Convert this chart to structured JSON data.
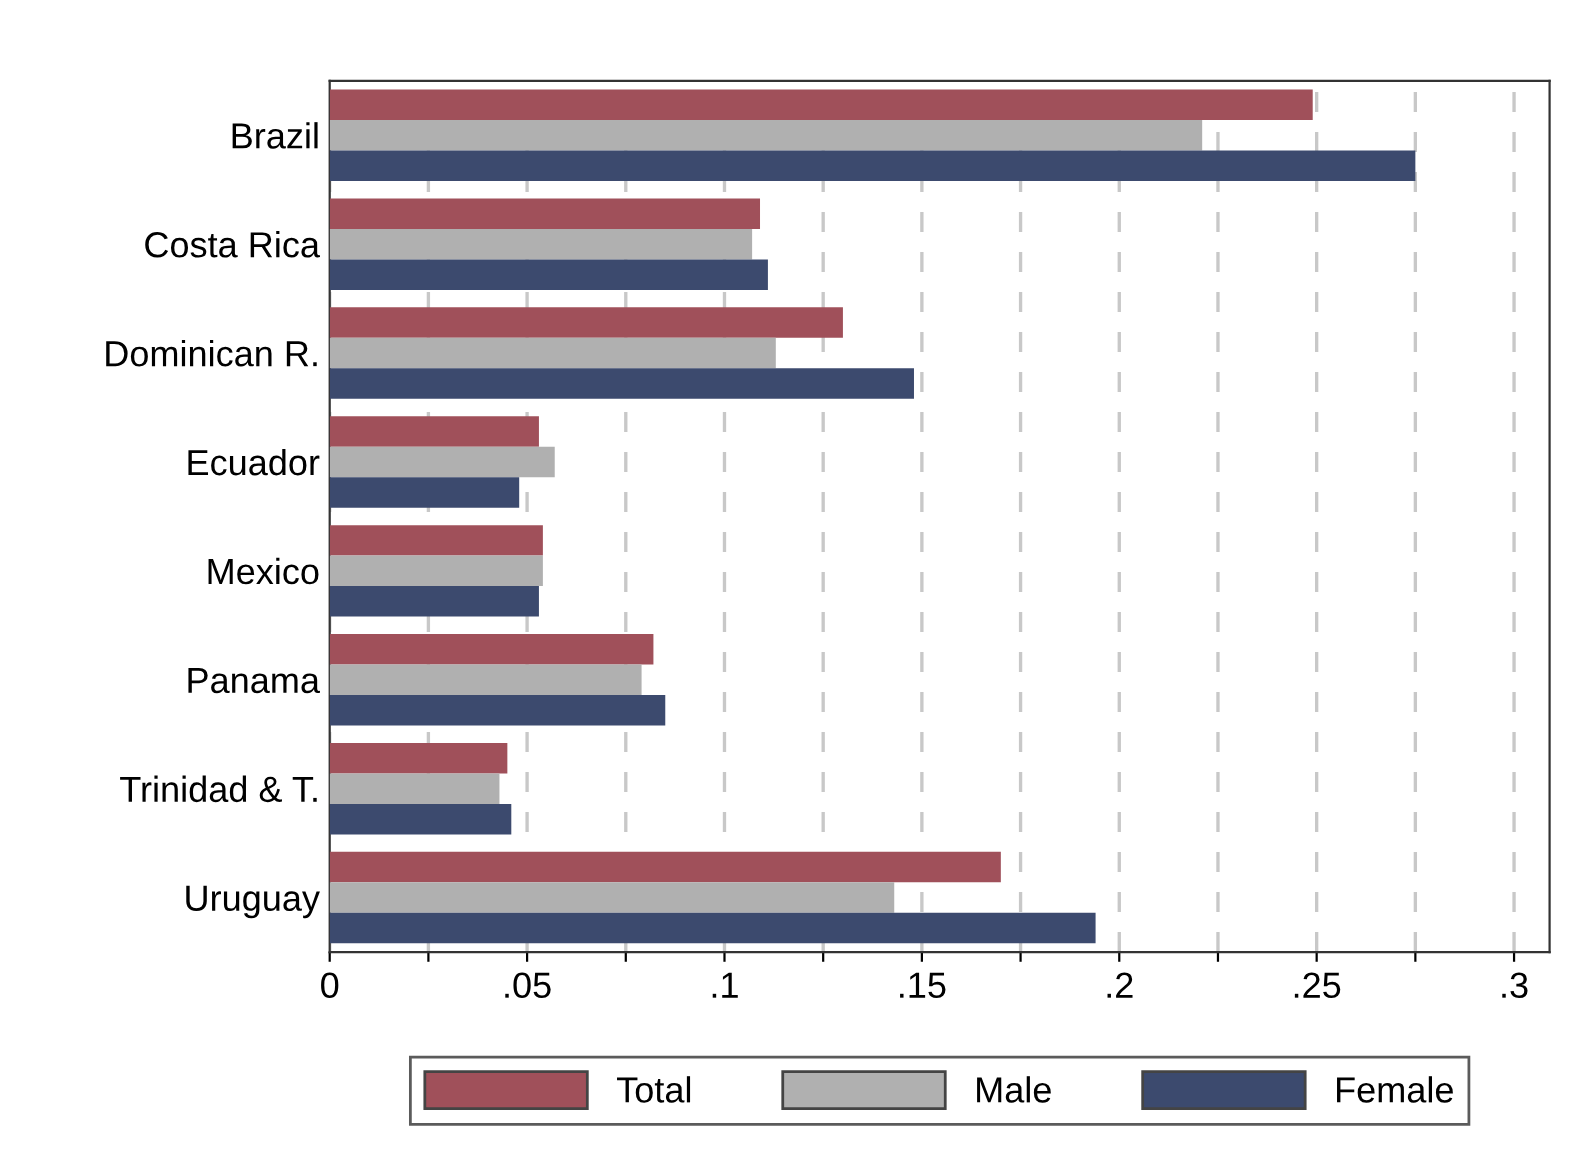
{
  "chart_data": {
    "type": "bar",
    "orientation": "horizontal",
    "categories": [
      "Brazil",
      "Costa Rica",
      "Dominican R.",
      "Ecuador",
      "Mexico",
      "Panama",
      "Trinidad & T.",
      "Uruguay"
    ],
    "series": [
      {
        "name": "Total",
        "color": "#a0505a",
        "values": [
          0.249,
          0.109,
          0.13,
          0.053,
          0.054,
          0.082,
          0.045,
          0.17
        ]
      },
      {
        "name": "Male",
        "color": "#b0b0b0",
        "values": [
          0.221,
          0.107,
          0.113,
          0.057,
          0.054,
          0.079,
          0.043,
          0.143
        ]
      },
      {
        "name": "Female",
        "color": "#3c4a6e",
        "values": [
          0.275,
          0.111,
          0.148,
          0.048,
          0.053,
          0.085,
          0.046,
          0.194
        ]
      }
    ],
    "xlim": [
      0,
      0.309
    ],
    "xticks": [
      {
        "value": 0,
        "label": "0"
      },
      {
        "value": 0.025,
        "label": null
      },
      {
        "value": 0.05,
        "label": ".05"
      },
      {
        "value": 0.075,
        "label": null
      },
      {
        "value": 0.1,
        "label": ".1"
      },
      {
        "value": 0.125,
        "label": null
      },
      {
        "value": 0.15,
        "label": ".15"
      },
      {
        "value": 0.175,
        "label": null
      },
      {
        "value": 0.2,
        "label": ".2"
      },
      {
        "value": 0.225,
        "label": null
      },
      {
        "value": 0.25,
        "label": ".25"
      },
      {
        "value": 0.275,
        "label": null
      },
      {
        "value": 0.3,
        "label": ".3"
      }
    ],
    "grid": "x",
    "legend": "bottom"
  }
}
